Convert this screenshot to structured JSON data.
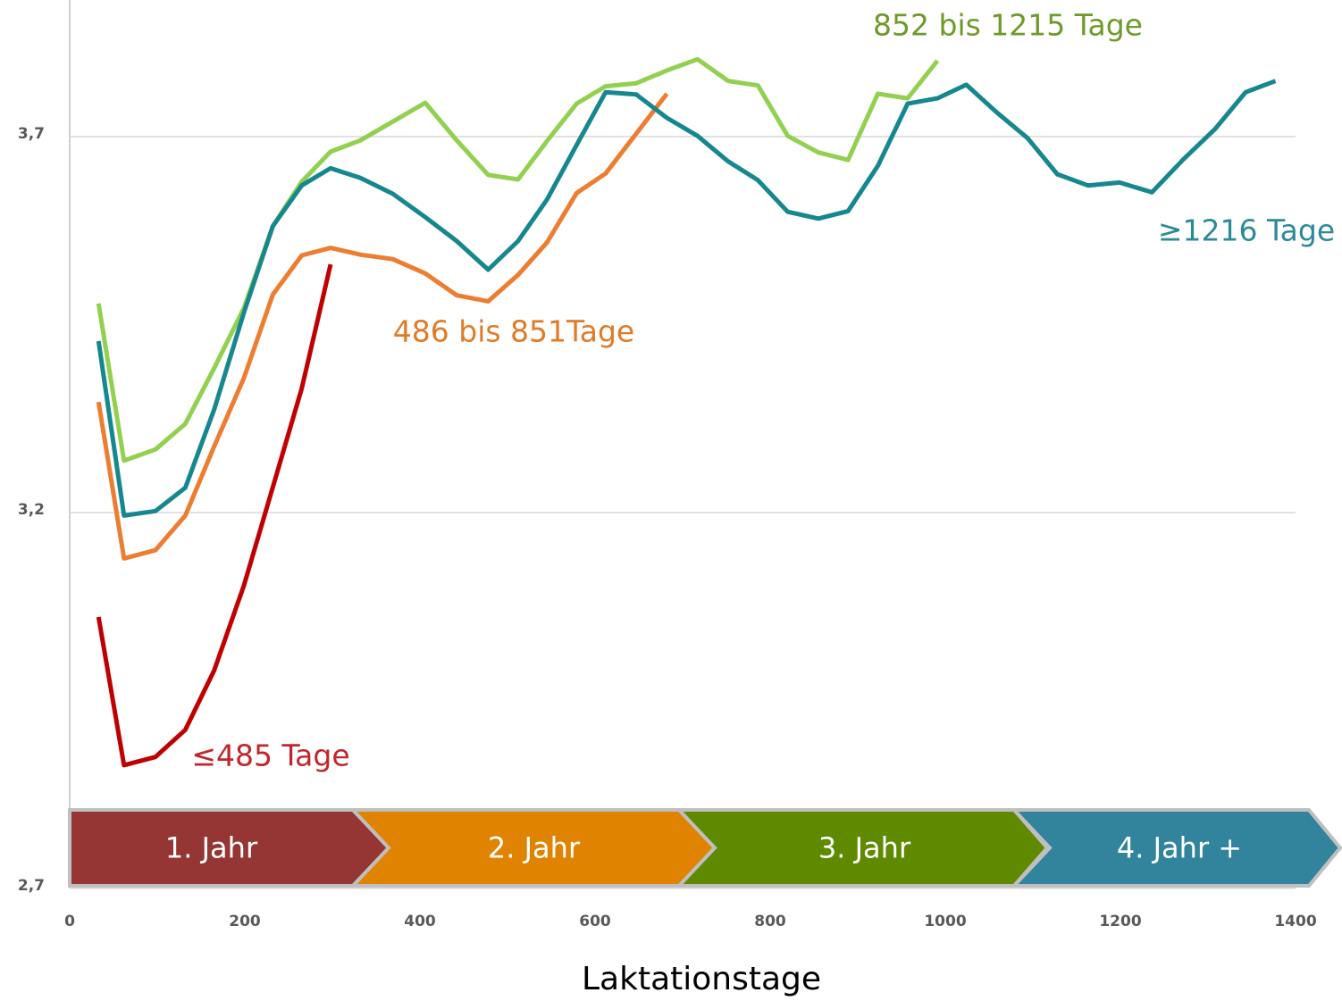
{
  "chart_data": {
    "type": "line",
    "x_label": "Laktationstage",
    "x": [
      33,
      62,
      98,
      132,
      165,
      199,
      232,
      265,
      298,
      332,
      369,
      406,
      442,
      478,
      512,
      545,
      579,
      612,
      647,
      682,
      717,
      752,
      786,
      820,
      855,
      889,
      923,
      957,
      991,
      1024,
      1058,
      1094,
      1128,
      1163,
      1199,
      1236,
      1272,
      1308,
      1343,
      1377
    ],
    "series": [
      {
        "name": "≤485 Tage",
        "color": "#c00000",
        "label_color": "#c0262c",
        "values": [
          3.061,
          2.864,
          2.875,
          2.911,
          2.99,
          3.103,
          3.234,
          3.365,
          3.53,
          null,
          null,
          null,
          null,
          null,
          null,
          null,
          null,
          null,
          null,
          null,
          null,
          null,
          null,
          null,
          null,
          null,
          null,
          null,
          null,
          null,
          null,
          null,
          null,
          null,
          null,
          null,
          null,
          null,
          null,
          null
        ]
      },
      {
        "name": "486 bis 851Tage",
        "color": "#ed7d31",
        "label_color": "#e07b28",
        "values": [
          3.347,
          3.139,
          3.15,
          3.196,
          3.288,
          3.379,
          3.49,
          3.542,
          3.552,
          3.543,
          3.537,
          3.518,
          3.489,
          3.481,
          3.516,
          3.559,
          3.625,
          3.651,
          3.704,
          3.757,
          null,
          null,
          null,
          null,
          null,
          null,
          null,
          null,
          null,
          null,
          null,
          null,
          null,
          null,
          null,
          null,
          null,
          null,
          null,
          null
        ]
      },
      {
        "name": "852 bis 1215 Tage",
        "color": "#92d050",
        "label_color": "#6e9a2a",
        "values": [
          3.478,
          3.269,
          3.284,
          3.318,
          3.392,
          3.472,
          3.581,
          3.64,
          3.68,
          3.695,
          3.72,
          3.745,
          3.695,
          3.649,
          3.643,
          3.694,
          3.744,
          3.767,
          3.771,
          3.788,
          3.803,
          3.774,
          3.768,
          3.701,
          3.679,
          3.669,
          3.757,
          3.751,
          3.801,
          null,
          null,
          null,
          null,
          null,
          null,
          null,
          null,
          null,
          null,
          null
        ]
      },
      {
        "name": "≥1216 Tage",
        "color": "#17878f",
        "label_color": "#2c8a9a",
        "values": [
          3.428,
          3.196,
          3.202,
          3.233,
          3.337,
          3.466,
          3.581,
          3.635,
          3.658,
          3.645,
          3.624,
          3.593,
          3.561,
          3.523,
          3.561,
          3.616,
          3.689,
          3.759,
          3.756,
          3.725,
          3.701,
          3.667,
          3.642,
          3.6,
          3.591,
          3.601,
          3.661,
          3.744,
          3.751,
          3.769,
          3.733,
          3.698,
          3.65,
          3.635,
          3.639,
          3.626,
          3.67,
          3.71,
          3.759,
          3.774
        ]
      }
    ],
    "xlim": [
      0,
      1400
    ],
    "xticks": [
      0,
      200,
      400,
      600,
      800,
      1000,
      1200,
      1400
    ],
    "ylim": [
      2.7,
      3.88
    ],
    "yticks": [
      {
        "value": 2.7,
        "label": "2,7"
      },
      {
        "value": 3.2,
        "label": "3,2"
      },
      {
        "value": 3.7,
        "label": "3,7"
      }
    ],
    "grid": true,
    "phases": [
      {
        "label": "1. Jahr",
        "color": "#963634"
      },
      {
        "label": "2. Jahr",
        "color": "#e08300"
      },
      {
        "label": "3. Jahr",
        "color": "#5f8a00"
      },
      {
        "label": "4. Jahr +",
        "color": "#31849b"
      }
    ]
  }
}
